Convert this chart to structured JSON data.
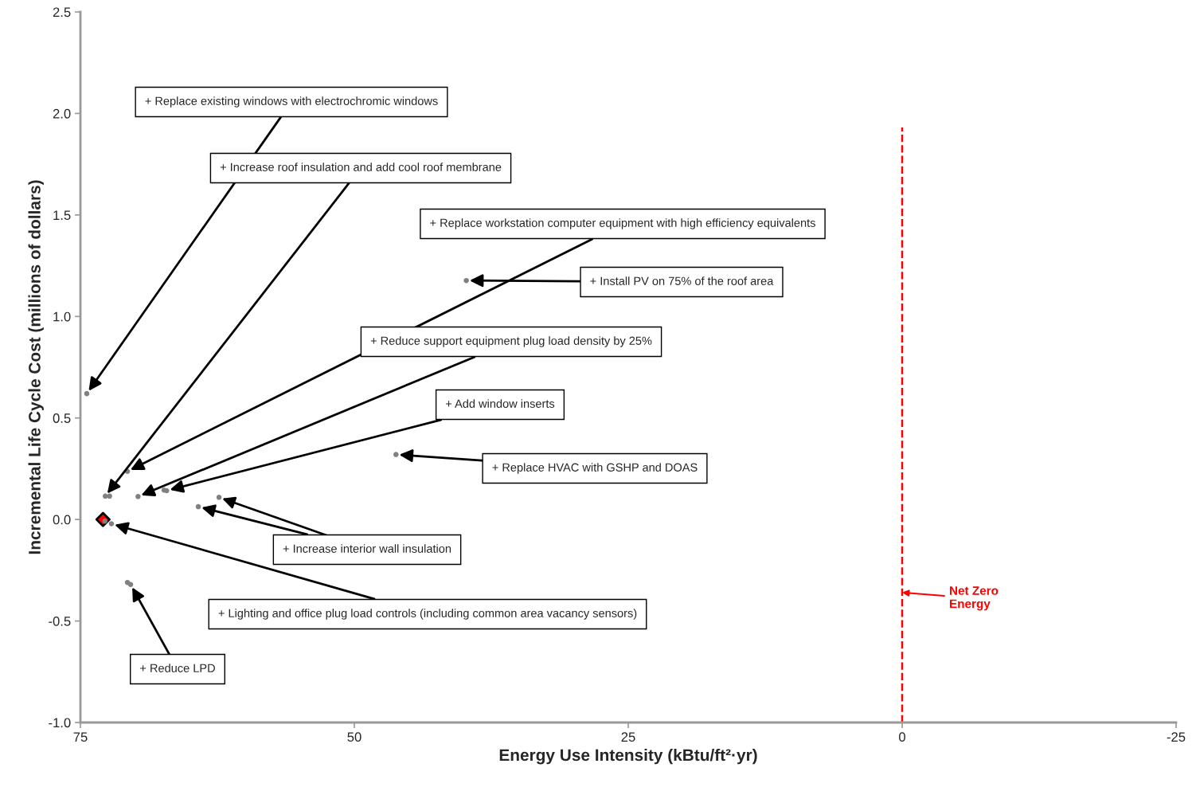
{
  "chart_data": {
    "type": "scatter",
    "xlabel": "Energy Use Intensity (kBtu/ft²·yr)",
    "ylabel": "Incremental Life Cycle Cost (millions of dollars)",
    "series": [
      {
        "marker": "circle",
        "color": "#808080",
        "x": [
          74.42,
          72.73,
          72.34,
          70.71,
          69.74,
          67.37,
          67.13,
          64.24,
          62.35,
          72.77,
          72.17,
          70.71,
          70.42,
          39.78,
          46.2
        ],
        "values": [
          0.62,
          0.115,
          0.115,
          0.237,
          0.113,
          0.145,
          0.142,
          0.063,
          0.109,
          -0.008,
          -0.021,
          -0.31,
          -0.32,
          1.177,
          0.32
        ]
      },
      {
        "marker": "diamond",
        "color": "#ff0000",
        "x": [
          72.94
        ],
        "values": [
          0.0
        ]
      }
    ],
    "annotations": [
      {
        "text": "+ Replace existing windows with electrochromic windows",
        "x": 74.42,
        "y": 0.62
      },
      {
        "text": "+ Increase roof insulation and add cool roof membrane",
        "x": 72.73,
        "y": 0.115
      },
      {
        "text": "+ Replace workstation computer equipment with high efficiency equivalents",
        "x": 70.71,
        "y": 0.237
      },
      {
        "text": "+ Install PV on 75% of the roof area",
        "x": 39.78,
        "y": 1.177
      },
      {
        "text": "+ Reduce support equipment plug load density by 25%",
        "x": 69.74,
        "y": 0.113
      },
      {
        "text": "+ Add window inserts",
        "x": 67.13,
        "y": 0.142
      },
      {
        "text": "+ Replace HVAC with GSHP and DOAS",
        "x": 46.2,
        "y": 0.32
      },
      {
        "text": "+ Increase interior wall insulation",
        "x": 64.24,
        "y": 0.063
      },
      {
        "text": "+ Lighting and office plug load controls (including common area vacancy sensors)",
        "x": 72.17,
        "y": -0.021
      },
      {
        "text": "+ Reduce LPD",
        "x": 70.42,
        "y": -0.32
      }
    ],
    "ref_lines": [
      {
        "axis": "x",
        "value": 0,
        "label": "Net Zero\nEnergy",
        "color": "#ff0000",
        "line_style": "dashed"
      }
    ],
    "xlim": [
      75,
      -25
    ],
    "xticks": [
      75,
      50,
      25,
      0,
      -25
    ],
    "ylim": [
      -1.0,
      2.5
    ],
    "yticks": [
      {
        "value": -1.0,
        "label": "-1.0"
      },
      {
        "value": -0.5,
        "label": "-0.5"
      },
      {
        "value": 0,
        "label": "0.0"
      },
      {
        "value": 0.5,
        "label": "0.5"
      },
      {
        "value": 1.0,
        "label": "1.0"
      },
      {
        "value": 1.5,
        "label": "1.5"
      },
      {
        "value": 2.0,
        "label": "2.0"
      },
      {
        "value": 2.5,
        "label": "2.5"
      }
    ],
    "grid": false,
    "legend": false
  }
}
